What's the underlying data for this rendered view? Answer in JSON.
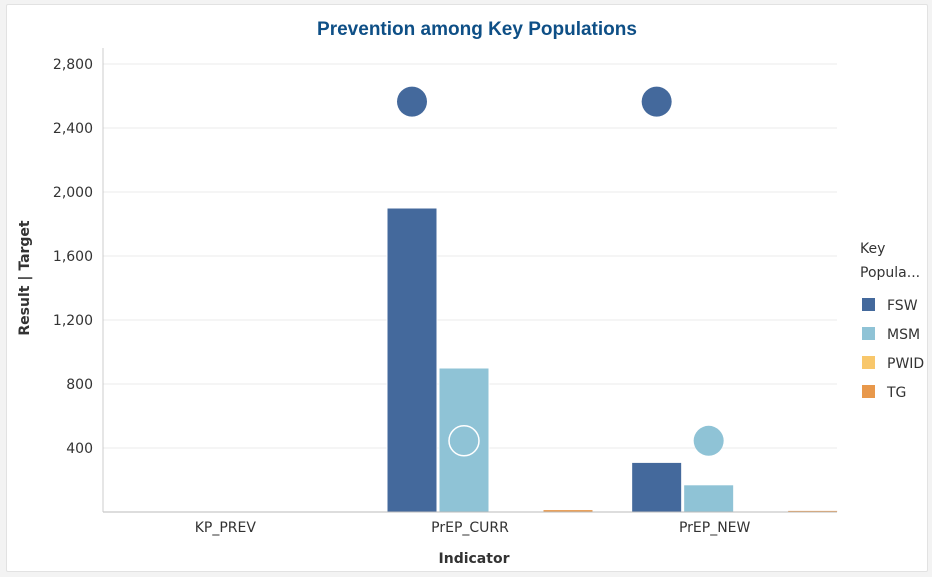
{
  "chart_data": {
    "type": "bar",
    "title": "Prevention among Key Populations",
    "xlabel": "Indicator",
    "ylabel": "Result  |  Target",
    "categories": [
      "KP_PREV",
      "PrEP_CURR",
      "PrEP_NEW"
    ],
    "ylim": [
      0,
      2900
    ],
    "yticks": [
      400,
      800,
      1200,
      1600,
      2000,
      2400,
      2800
    ],
    "ytick_labels": [
      "400",
      "800",
      "1,200",
      "1,600",
      "2,000",
      "2,400",
      "2,800"
    ],
    "grid": true,
    "series": [
      {
        "name": "FSW",
        "color": "#44699c",
        "values": [
          0,
          1900,
          310
        ],
        "targets": [
          null,
          2565,
          2565
        ]
      },
      {
        "name": "MSM",
        "color": "#8fc3d6",
        "values": [
          0,
          900,
          170
        ],
        "targets": [
          null,
          445,
          445
        ]
      },
      {
        "name": "PWID",
        "color": "#f8c76b",
        "values": [
          0,
          0,
          0
        ],
        "targets": [
          null,
          null,
          null
        ]
      },
      {
        "name": "TG",
        "color": "#e8984b",
        "values": [
          0,
          15,
          10
        ],
        "targets": [
          null,
          null,
          null
        ]
      }
    ],
    "legend": {
      "title_lines": [
        "Key",
        "Popula..."
      ],
      "position": "right"
    }
  }
}
